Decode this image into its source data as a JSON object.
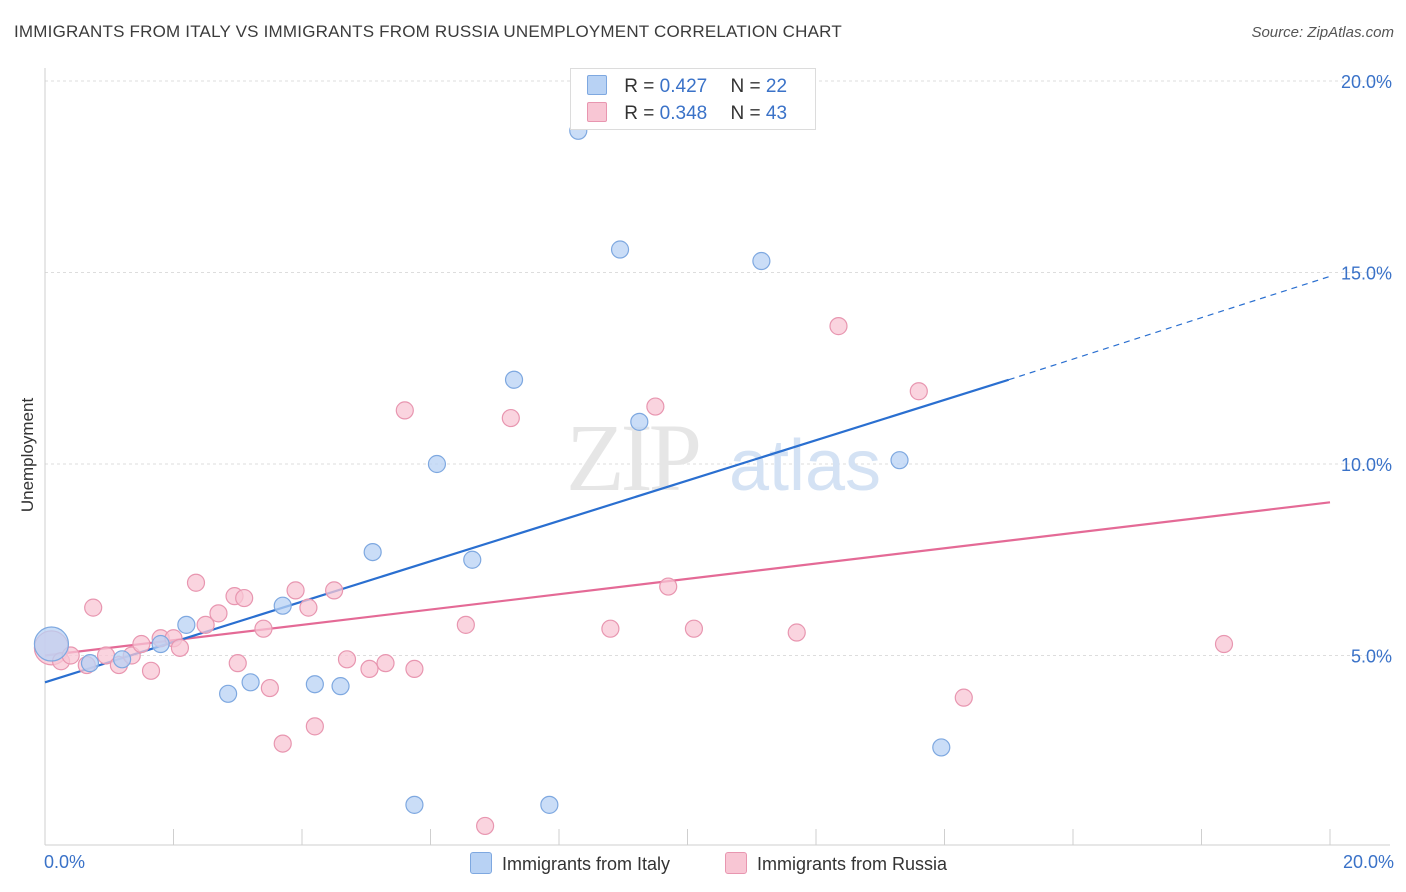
{
  "header": {
    "title": "IMMIGRANTS FROM ITALY VS IMMIGRANTS FROM RUSSIA UNEMPLOYMENT CORRELATION CHART",
    "source": "Source: ZipAtlas.com"
  },
  "legend": {
    "items": [
      {
        "r_label": "R =",
        "r_value": "0.427",
        "n_label": "N =",
        "n_value": "22"
      },
      {
        "r_label": "R =",
        "r_value": "0.348",
        "n_label": "N =",
        "n_value": "43"
      }
    ]
  },
  "bottom_legend": {
    "italy": "Immigrants from Italy",
    "russia": "Immigrants from Russia"
  },
  "colors": {
    "italy_fill": "#b8d2f4",
    "italy_stroke": "#7ea8e0",
    "italy_line": "#2a6fd0",
    "russia_fill": "#f8c6d4",
    "russia_stroke": "#e896b0",
    "russia_line": "#e46a96",
    "tick_text": "#3a72c8",
    "grid": "#dddddd"
  },
  "chart_data": {
    "type": "scatter",
    "title": "IMMIGRANTS FROM ITALY VS IMMIGRANTS FROM RUSSIA UNEMPLOYMENT CORRELATION CHART",
    "xlabel": "",
    "ylabel": "Unemployment",
    "xlim": [
      0,
      20
    ],
    "ylim": [
      0,
      20
    ],
    "x_tick_labels": [
      "0.0%",
      "20.0%"
    ],
    "y_ticks": [
      5,
      10,
      15,
      20
    ],
    "y_tick_labels": [
      "5.0%",
      "10.0%",
      "15.0%",
      "20.0%"
    ],
    "watermark": "ZIPatlas",
    "series": [
      {
        "name": "Immigrants from Italy",
        "r": 0.427,
        "n": 22,
        "trend": {
          "x1": 0,
          "y1": 4.3,
          "x2": 15,
          "y2": 12.2,
          "dashed_to_x": 20,
          "dashed_to_y": 14.9
        },
        "points": [
          {
            "x": 0.1,
            "y": 5.3,
            "big": true
          },
          {
            "x": 0.7,
            "y": 4.8
          },
          {
            "x": 1.2,
            "y": 4.9
          },
          {
            "x": 1.8,
            "y": 5.3
          },
          {
            "x": 2.2,
            "y": 5.8
          },
          {
            "x": 2.85,
            "y": 4.0
          },
          {
            "x": 3.2,
            "y": 4.3
          },
          {
            "x": 3.7,
            "y": 6.3
          },
          {
            "x": 4.2,
            "y": 4.25
          },
          {
            "x": 4.6,
            "y": 4.2
          },
          {
            "x": 5.1,
            "y": 7.7
          },
          {
            "x": 5.75,
            "y": 1.1
          },
          {
            "x": 6.1,
            "y": 10.0
          },
          {
            "x": 6.65,
            "y": 7.5
          },
          {
            "x": 7.3,
            "y": 12.2
          },
          {
            "x": 7.85,
            "y": 1.1
          },
          {
            "x": 8.3,
            "y": 18.7
          },
          {
            "x": 8.95,
            "y": 15.6
          },
          {
            "x": 9.25,
            "y": 11.1
          },
          {
            "x": 11.15,
            "y": 15.3
          },
          {
            "x": 13.3,
            "y": 10.1
          },
          {
            "x": 13.95,
            "y": 2.6
          }
        ]
      },
      {
        "name": "Immigrants from Russia",
        "r": 0.348,
        "n": 43,
        "trend": {
          "x1": 0,
          "y1": 5.0,
          "x2": 20,
          "y2": 9.0
        },
        "points": [
          {
            "x": 0.1,
            "y": 5.2,
            "big": true
          },
          {
            "x": 0.25,
            "y": 4.85
          },
          {
            "x": 0.4,
            "y": 5.0
          },
          {
            "x": 0.65,
            "y": 4.75
          },
          {
            "x": 0.75,
            "y": 6.25
          },
          {
            "x": 0.95,
            "y": 5.0
          },
          {
            "x": 1.15,
            "y": 4.75
          },
          {
            "x": 1.35,
            "y": 5.0
          },
          {
            "x": 1.5,
            "y": 5.3
          },
          {
            "x": 1.65,
            "y": 4.6
          },
          {
            "x": 1.8,
            "y": 5.45
          },
          {
            "x": 2.0,
            "y": 5.45
          },
          {
            "x": 2.1,
            "y": 5.2
          },
          {
            "x": 2.35,
            "y": 6.9
          },
          {
            "x": 2.5,
            "y": 5.8
          },
          {
            "x": 2.7,
            "y": 6.1
          },
          {
            "x": 2.95,
            "y": 6.55
          },
          {
            "x": 3.0,
            "y": 4.8
          },
          {
            "x": 3.1,
            "y": 6.5
          },
          {
            "x": 3.4,
            "y": 5.7
          },
          {
            "x": 3.5,
            "y": 4.15
          },
          {
            "x": 3.7,
            "y": 2.7
          },
          {
            "x": 3.9,
            "y": 6.7
          },
          {
            "x": 4.1,
            "y": 6.25
          },
          {
            "x": 4.2,
            "y": 3.15
          },
          {
            "x": 4.5,
            "y": 6.7
          },
          {
            "x": 4.7,
            "y": 4.9
          },
          {
            "x": 5.05,
            "y": 4.65
          },
          {
            "x": 5.6,
            "y": 11.4
          },
          {
            "x": 5.3,
            "y": 4.8
          },
          {
            "x": 5.75,
            "y": 4.65
          },
          {
            "x": 6.55,
            "y": 5.8
          },
          {
            "x": 6.85,
            "y": 0.55
          },
          {
            "x": 7.25,
            "y": 11.2
          },
          {
            "x": 8.8,
            "y": 5.7
          },
          {
            "x": 9.5,
            "y": 11.5
          },
          {
            "x": 9.7,
            "y": 6.8
          },
          {
            "x": 10.1,
            "y": 5.7
          },
          {
            "x": 11.7,
            "y": 5.6
          },
          {
            "x": 12.35,
            "y": 13.6
          },
          {
            "x": 13.6,
            "y": 11.9
          },
          {
            "x": 14.3,
            "y": 3.9
          },
          {
            "x": 18.35,
            "y": 5.3
          }
        ]
      }
    ]
  }
}
